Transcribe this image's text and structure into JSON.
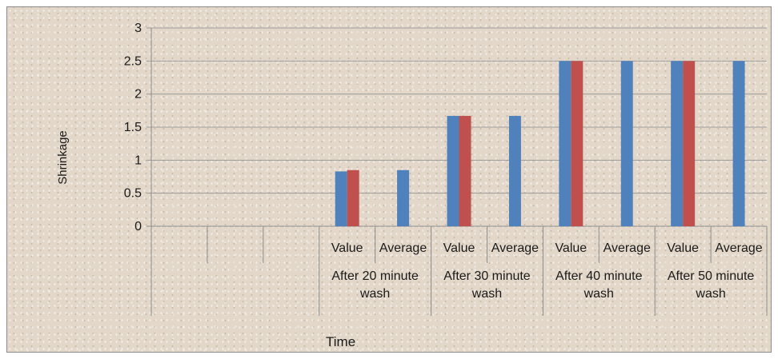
{
  "chart_data": {
    "type": "bar",
    "ylabel": "Shrinkage",
    "xlabel": "Time",
    "ylim": [
      0,
      3
    ],
    "yticks": [
      "0",
      "0.5",
      "1",
      "1.5",
      "2",
      "2.5",
      "3"
    ],
    "grid": true,
    "groups": [
      {
        "label": "",
        "categories": [
          "",
          "",
          ""
        ]
      },
      {
        "label": "After 20 minute wash",
        "categories": [
          "Value",
          "Average"
        ]
      },
      {
        "label": "After 30 minute wash",
        "categories": [
          "Value",
          "Average"
        ]
      },
      {
        "label": "After 40 minute wash",
        "categories": [
          "Value",
          "Average"
        ]
      },
      {
        "label": "After 50 minute wash",
        "categories": [
          "Value",
          "Average"
        ]
      }
    ],
    "categories": [
      "",
      "",
      "",
      "Value",
      "Average",
      "Value",
      "Average",
      "Value",
      "Average",
      "Value",
      "Average"
    ],
    "series": [
      {
        "color": "#4f81bd",
        "values": [
          null,
          null,
          null,
          0.83,
          0.85,
          1.67,
          1.67,
          2.5,
          2.5,
          2.5,
          2.5
        ]
      },
      {
        "color": "#c0504d",
        "values": [
          null,
          null,
          null,
          0.85,
          null,
          1.67,
          null,
          2.5,
          null,
          2.5,
          null
        ]
      }
    ]
  }
}
